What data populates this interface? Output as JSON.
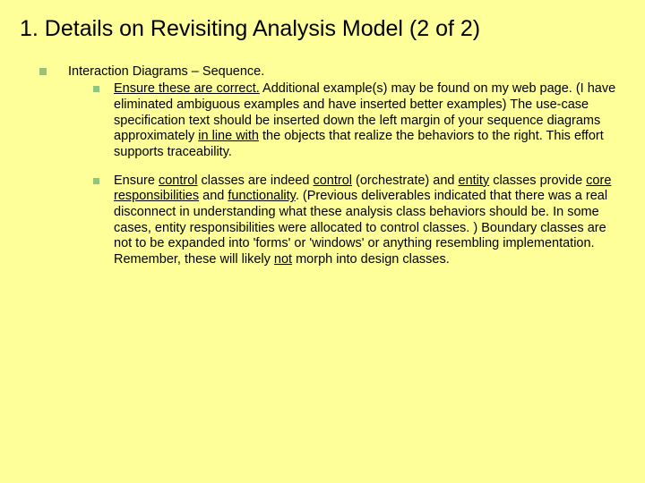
{
  "colors": {
    "background": "#ffff99",
    "bullet": "#93c47d",
    "text": "#000000"
  },
  "typography": {
    "font_family": "Verdana, Geneva, sans-serif",
    "title_fontsize": 25,
    "body_fontsize": 14.5,
    "line_height": 1.22
  },
  "title": "1.  Details on Revisiting Analysis Model (2 of 2)",
  "outer_label": "Interaction Diagrams – Sequence.",
  "bullets": {
    "b1": {
      "p1": "Ensure these are correct.",
      "p2": "  Additional example(s) may be found on my web page.  (I have eliminated ambiguous examples and have inserted better examples)  The use-case specification text should be inserted down the left margin of your sequence diagrams approximately ",
      "p3": "in line with",
      "p4": " the objects that realize the behaviors to the right.  This effort supports traceability."
    },
    "b2": {
      "p1": "Ensure ",
      "p2": "control",
      "p3": " classes are indeed ",
      "p4": "control",
      "p5": " (orchestrate) and ",
      "p6": "entity",
      "p7": " classes provide ",
      "p8": "core",
      "p9": " ",
      "p10": "responsibilities",
      "p11": " and ",
      "p12": "functionality",
      "p13": ".  (Previous deliverables indicated that there was a real disconnect in understanding what these analysis class behaviors should be.  In some cases, entity responsibilities were allocated to control classes. )  Boundary classes are not to be expanded into 'forms' or 'windows' or anything resembling implementation.  Remember, these will likely ",
      "p14": "not",
      "p15": " morph into design classes."
    }
  }
}
